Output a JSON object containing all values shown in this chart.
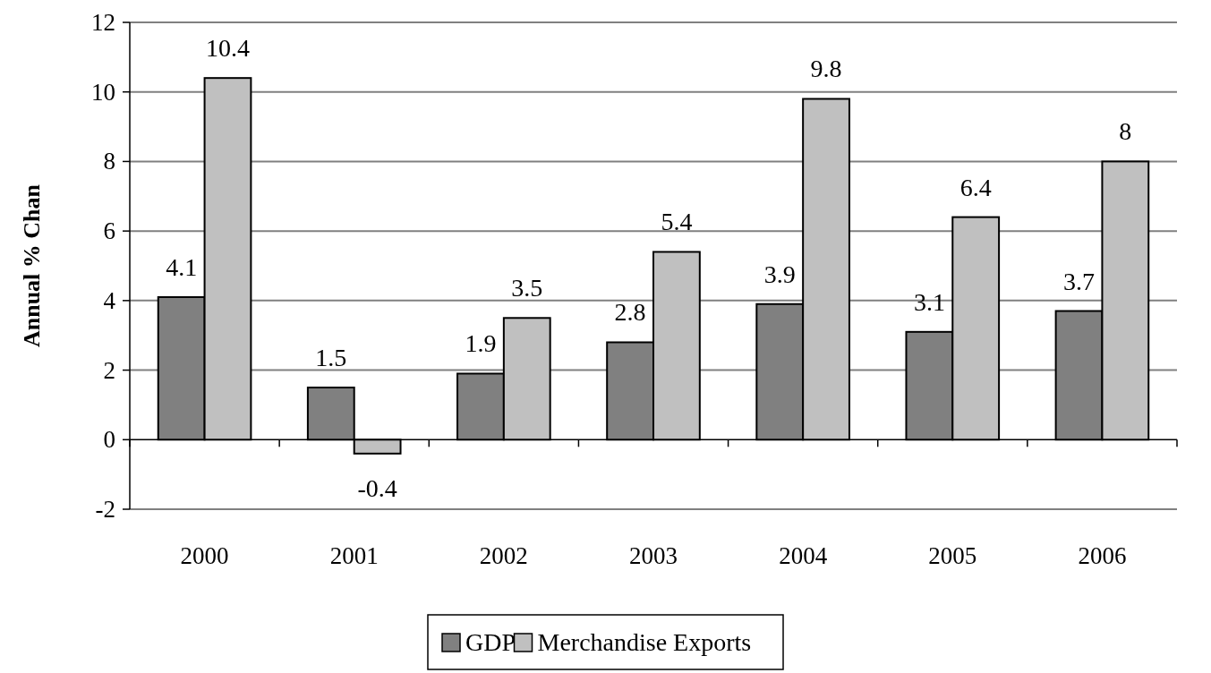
{
  "chart_data": {
    "type": "bar",
    "ylabel": "Annual % Chan",
    "categories": [
      "2000",
      "2001",
      "2002",
      "2003",
      "2004",
      "2005",
      "2006"
    ],
    "series": [
      {
        "name": "GDP",
        "color": "#808080",
        "values": [
          4.1,
          1.5,
          1.9,
          2.8,
          3.9,
          3.1,
          3.7
        ]
      },
      {
        "name": "Merchandise Exports",
        "color": "#c0c0c0",
        "values": [
          10.4,
          -0.4,
          3.5,
          5.4,
          9.8,
          6.4,
          8
        ]
      }
    ],
    "ylim": [
      -2,
      12
    ],
    "yticks": [
      -2,
      0,
      2,
      4,
      6,
      8,
      10,
      12
    ],
    "grid": "y",
    "legend": "bottom",
    "data_labels": true
  }
}
